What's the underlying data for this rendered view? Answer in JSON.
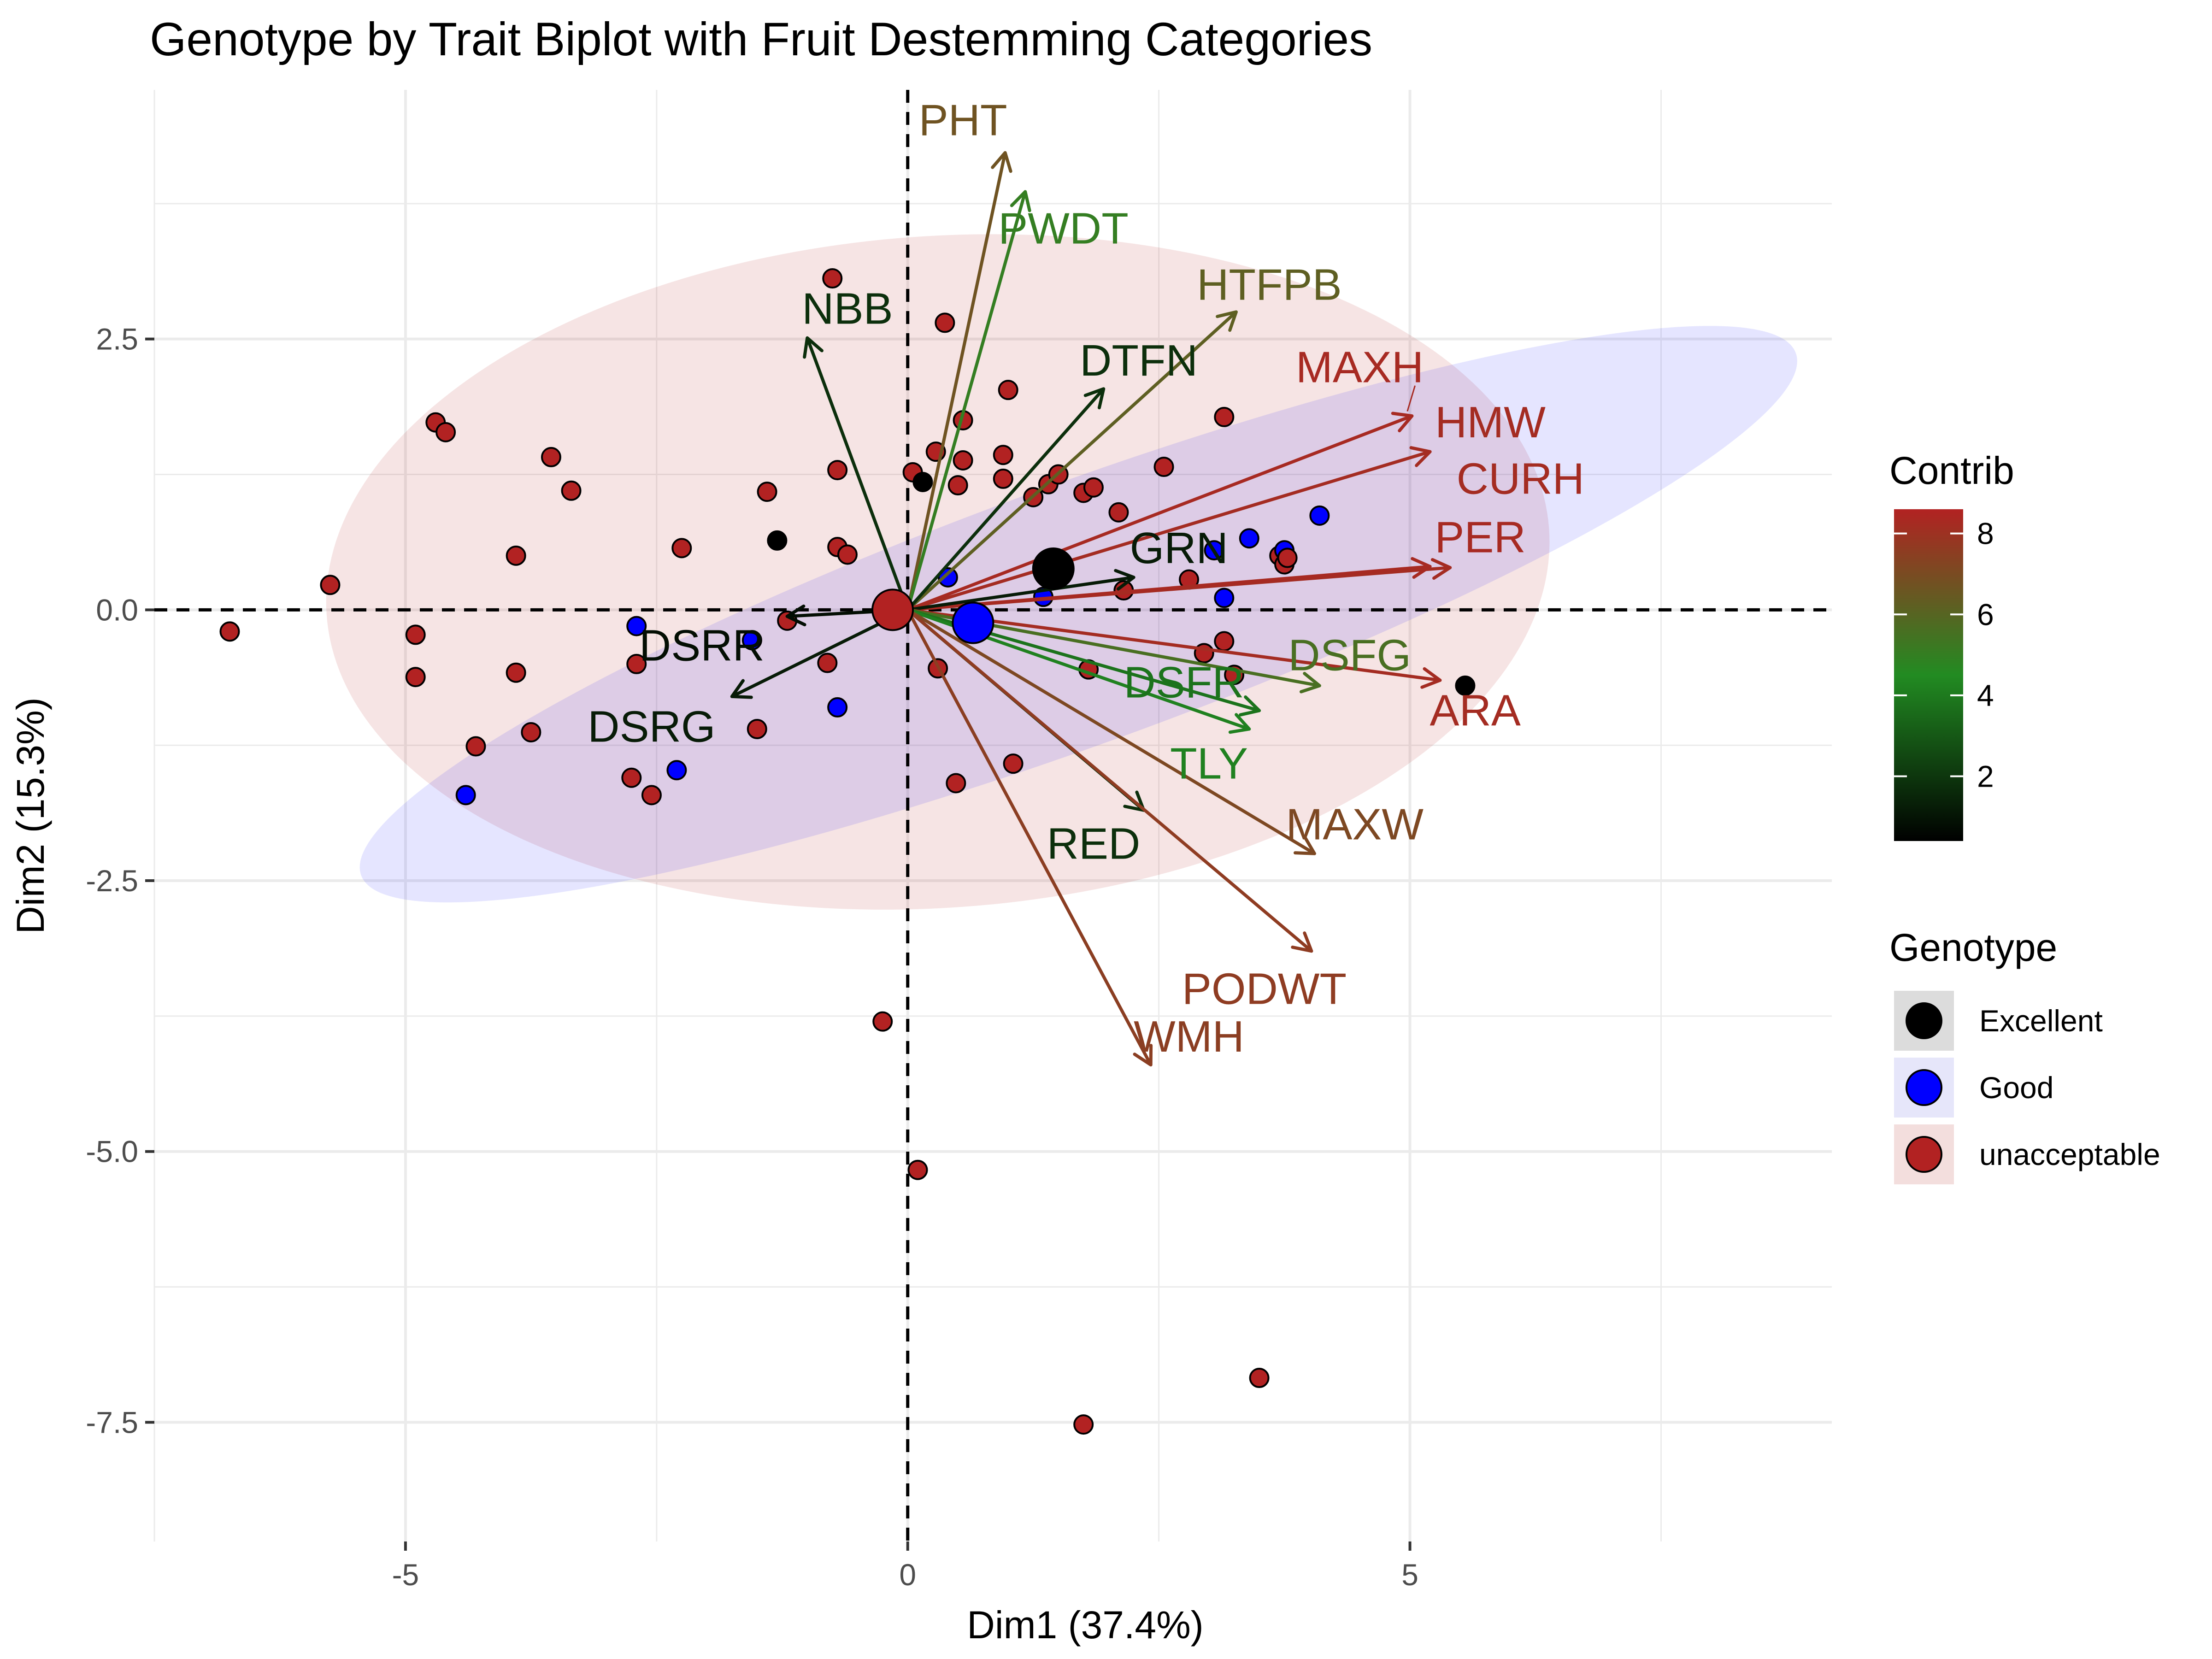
{
  "chart_data": {
    "type": "scatter",
    "subtype": "pca-biplot",
    "title": "Genotype by Trait Biplot with Fruit Destemming Categories",
    "xlabel": "Dim1 (37.4%)",
    "ylabel": "Dim2 (15.3%)",
    "xlim": [
      -7.5,
      9.2
    ],
    "ylim": [
      -8.6,
      4.8
    ],
    "x_ticks": [
      -5,
      0,
      5
    ],
    "x_tick_labels": [
      "-5",
      "0",
      "5"
    ],
    "y_ticks": [
      2.5,
      0.0,
      -2.5,
      -5.0,
      -7.5
    ],
    "y_tick_labels": [
      "2.5",
      "0.0",
      "-2.5",
      "-5.0",
      "-7.5"
    ],
    "grid": true,
    "reference_lines": {
      "x": 0,
      "y": 0,
      "style": "dashed"
    },
    "legend_position": "right",
    "contrib_legend": {
      "title": "Contrib",
      "ticks": [
        2,
        4,
        6,
        8
      ],
      "tick_labels": [
        "2",
        "4",
        "6",
        "8"
      ],
      "range": [
        0.4,
        8.6
      ],
      "colors": [
        "#000000",
        "#228B22",
        "#B22222"
      ]
    },
    "genotype_legend": {
      "title": "Genotype",
      "entries": [
        {
          "label": "Excellent",
          "color": "#000000",
          "key_bg": "#dcdcdc"
        },
        {
          "label": "Good",
          "color": "#0000FF",
          "key_bg": "#e6e6fa"
        },
        {
          "label": "unacceptable",
          "color": "#B22222",
          "key_bg": "#f3dedd"
        }
      ]
    },
    "ellipses": [
      {
        "group": "unacceptable",
        "cx": 0.3,
        "cy": 0.35,
        "rx": 6.1,
        "ry": 3.1,
        "angle": 4,
        "fill": "#B22222",
        "opacity": 0.12
      },
      {
        "group": "Good",
        "cx": 1.7,
        "cy": -0.04,
        "rx": 7.6,
        "ry": 1.2,
        "angle": 20,
        "fill": "#0000FF",
        "opacity": 0.1
      }
    ],
    "variables": [
      {
        "name": "PHT",
        "x": 0.97,
        "y": 4.22,
        "contrib": 6.7,
        "lx": 0.55,
        "ly": 4.52
      },
      {
        "name": "PWDT",
        "x": 1.17,
        "y": 3.86,
        "contrib": 5.0,
        "lx": 1.55,
        "ly": 3.52
      },
      {
        "name": "HTFPB",
        "x": 3.27,
        "y": 2.75,
        "contrib": 6.2,
        "lx": 3.6,
        "ly": 3.0
      },
      {
        "name": "NBB",
        "x": -1.0,
        "y": 2.51,
        "contrib": 1.8,
        "lx": -0.6,
        "ly": 2.78
      },
      {
        "name": "DTFN",
        "x": 1.95,
        "y": 2.04,
        "contrib": 1.8,
        "lx": 2.3,
        "ly": 2.3
      },
      {
        "name": "MAXH",
        "x": 5.02,
        "y": 1.79,
        "contrib": 8.3,
        "lx": 4.5,
        "ly": 2.24
      },
      {
        "name": "HMW",
        "x": 5.2,
        "y": 1.46,
        "contrib": 8.2,
        "lx": 5.8,
        "ly": 1.73
      },
      {
        "name": "CURH",
        "x": 5.4,
        "y": 0.39,
        "contrib": 8.2,
        "lx": 6.1,
        "ly": 1.21
      },
      {
        "name": "PER",
        "x": 5.2,
        "y": 0.4,
        "contrib": 8.3,
        "lx": 5.7,
        "ly": 0.67
      },
      {
        "name": "GRN",
        "x": 2.25,
        "y": 0.3,
        "contrib": 1.2,
        "lx": 2.7,
        "ly": 0.57
      },
      {
        "name": "ARA",
        "x": 5.3,
        "y": -0.65,
        "contrib": 8.2,
        "lx": 5.65,
        "ly": -0.93
      },
      {
        "name": "DSFG",
        "x": 4.1,
        "y": -0.7,
        "contrib": 5.6,
        "lx": 4.4,
        "ly": -0.42
      },
      {
        "name": "DSFR",
        "x": 3.5,
        "y": -0.93,
        "contrib": 3.8,
        "lx": 2.75,
        "ly": -0.67
      },
      {
        "name": "TLY",
        "x": 3.4,
        "y": -1.1,
        "contrib": 4.2,
        "lx": 3.0,
        "ly": -1.42
      },
      {
        "name": "MAXW",
        "x": 4.05,
        "y": -2.25,
        "contrib": 7.1,
        "lx": 4.45,
        "ly": -1.98
      },
      {
        "name": "RED",
        "x": 2.35,
        "y": -1.85,
        "contrib": 1.8,
        "lx": 1.85,
        "ly": -2.16
      },
      {
        "name": "PODWT",
        "x": 4.02,
        "y": -3.15,
        "contrib": 7.6,
        "lx": 3.55,
        "ly": -3.5
      },
      {
        "name": "WMH",
        "x": 2.42,
        "y": -4.2,
        "contrib": 7.5,
        "lx": 2.8,
        "ly": -3.94
      },
      {
        "name": "DSRR",
        "x": -1.2,
        "y": -0.06,
        "contrib": 0.8,
        "lx": -2.05,
        "ly": -0.33
      },
      {
        "name": "DSRG",
        "x": -1.75,
        "y": -0.8,
        "contrib": 1.2,
        "lx": -2.55,
        "ly": -1.08
      }
    ],
    "points": [
      {
        "x": -6.75,
        "y": -0.2,
        "group": "unacceptable"
      },
      {
        "x": -5.75,
        "y": 0.23,
        "group": "unacceptable"
      },
      {
        "x": -4.9,
        "y": -0.23,
        "group": "unacceptable"
      },
      {
        "x": -4.9,
        "y": -0.62,
        "group": "unacceptable"
      },
      {
        "x": -4.7,
        "y": 1.73,
        "group": "unacceptable"
      },
      {
        "x": -4.6,
        "y": 1.64,
        "group": "unacceptable"
      },
      {
        "x": -4.3,
        "y": -1.26,
        "group": "unacceptable"
      },
      {
        "x": -4.4,
        "y": -1.71,
        "group": "Good"
      },
      {
        "x": -3.9,
        "y": -0.58,
        "group": "unacceptable"
      },
      {
        "x": -3.9,
        "y": 0.5,
        "group": "unacceptable"
      },
      {
        "x": -3.75,
        "y": -1.13,
        "group": "unacceptable"
      },
      {
        "x": -3.55,
        "y": 1.41,
        "group": "unacceptable"
      },
      {
        "x": -3.35,
        "y": 1.1,
        "group": "unacceptable"
      },
      {
        "x": -2.7,
        "y": -0.15,
        "group": "Good"
      },
      {
        "x": -2.7,
        "y": -0.5,
        "group": "unacceptable"
      },
      {
        "x": -2.75,
        "y": -1.55,
        "group": "unacceptable"
      },
      {
        "x": -2.55,
        "y": -1.71,
        "group": "unacceptable"
      },
      {
        "x": -2.25,
        "y": 0.57,
        "group": "unacceptable"
      },
      {
        "x": -2.3,
        "y": -1.48,
        "group": "Good"
      },
      {
        "x": -1.55,
        "y": -0.28,
        "group": "Good"
      },
      {
        "x": -1.5,
        "y": -1.1,
        "group": "unacceptable"
      },
      {
        "x": -1.4,
        "y": 1.09,
        "group": "unacceptable"
      },
      {
        "x": -1.3,
        "y": 0.64,
        "group": "Excellent"
      },
      {
        "x": -1.2,
        "y": -0.1,
        "group": "unacceptable"
      },
      {
        "x": -0.75,
        "y": 3.06,
        "group": "unacceptable"
      },
      {
        "x": -0.7,
        "y": 1.29,
        "group": "unacceptable"
      },
      {
        "x": -0.7,
        "y": 0.58,
        "group": "unacceptable"
      },
      {
        "x": -0.6,
        "y": 0.51,
        "group": "unacceptable"
      },
      {
        "x": -0.8,
        "y": -0.49,
        "group": "unacceptable"
      },
      {
        "x": -0.7,
        "y": -0.9,
        "group": "Good"
      },
      {
        "x": -0.25,
        "y": -3.8,
        "group": "unacceptable"
      },
      {
        "x": 0.05,
        "y": 1.27,
        "group": "unacceptable"
      },
      {
        "x": 0.15,
        "y": 1.18,
        "group": "Excellent"
      },
      {
        "x": 0.28,
        "y": 1.46,
        "group": "unacceptable"
      },
      {
        "x": 0.37,
        "y": 2.65,
        "group": "unacceptable"
      },
      {
        "x": 0.4,
        "y": 0.3,
        "group": "Good"
      },
      {
        "x": 0.55,
        "y": 1.75,
        "group": "unacceptable"
      },
      {
        "x": 0.55,
        "y": 1.38,
        "group": "unacceptable"
      },
      {
        "x": 0.5,
        "y": 1.15,
        "group": "unacceptable"
      },
      {
        "x": 0.3,
        "y": -0.54,
        "group": "unacceptable"
      },
      {
        "x": 0.48,
        "y": -1.6,
        "group": "unacceptable"
      },
      {
        "x": 0.1,
        "y": -5.17,
        "group": "unacceptable"
      },
      {
        "x": 1.0,
        "y": 2.03,
        "group": "unacceptable"
      },
      {
        "x": 0.95,
        "y": 1.43,
        "group": "unacceptable"
      },
      {
        "x": 0.95,
        "y": 1.21,
        "group": "unacceptable"
      },
      {
        "x": 1.05,
        "y": -1.42,
        "group": "unacceptable"
      },
      {
        "x": 1.25,
        "y": 1.04,
        "group": "unacceptable"
      },
      {
        "x": 1.4,
        "y": 1.16,
        "group": "unacceptable"
      },
      {
        "x": 1.5,
        "y": 1.25,
        "group": "unacceptable"
      },
      {
        "x": 1.35,
        "y": 0.12,
        "group": "Good"
      },
      {
        "x": 1.75,
        "y": 1.08,
        "group": "unacceptable"
      },
      {
        "x": 1.85,
        "y": 1.13,
        "group": "unacceptable"
      },
      {
        "x": 1.8,
        "y": -0.55,
        "group": "unacceptable"
      },
      {
        "x": 2.1,
        "y": 0.9,
        "group": "unacceptable"
      },
      {
        "x": 2.15,
        "y": 0.18,
        "group": "unacceptable"
      },
      {
        "x": 2.55,
        "y": 1.32,
        "group": "unacceptable"
      },
      {
        "x": 2.8,
        "y": 0.28,
        "group": "unacceptable"
      },
      {
        "x": 2.95,
        "y": -0.4,
        "group": "unacceptable"
      },
      {
        "x": 3.05,
        "y": 0.55,
        "group": "Good"
      },
      {
        "x": 3.15,
        "y": 1.78,
        "group": "unacceptable"
      },
      {
        "x": 3.15,
        "y": 0.11,
        "group": "Good"
      },
      {
        "x": 3.15,
        "y": -0.29,
        "group": "unacceptable"
      },
      {
        "x": 3.25,
        "y": -0.6,
        "group": "unacceptable"
      },
      {
        "x": 3.4,
        "y": 0.66,
        "group": "Good"
      },
      {
        "x": 3.7,
        "y": 0.5,
        "group": "unacceptable"
      },
      {
        "x": 3.75,
        "y": 0.55,
        "group": "Good"
      },
      {
        "x": 3.75,
        "y": 0.42,
        "group": "unacceptable"
      },
      {
        "x": 3.78,
        "y": 0.48,
        "group": "unacceptable"
      },
      {
        "x": 4.1,
        "y": 0.87,
        "group": "Good"
      },
      {
        "x": 3.5,
        "y": -7.09,
        "group": "unacceptable"
      },
      {
        "x": 1.75,
        "y": -7.52,
        "group": "unacceptable"
      },
      {
        "x": 5.55,
        "y": -0.7,
        "group": "Excellent"
      }
    ],
    "group_means": [
      {
        "group": "Excellent",
        "x": 1.45,
        "y": 0.38
      },
      {
        "group": "Good",
        "x": 0.65,
        "y": -0.12
      },
      {
        "group": "unacceptable",
        "x": -0.15,
        "y": 0.0
      }
    ]
  }
}
